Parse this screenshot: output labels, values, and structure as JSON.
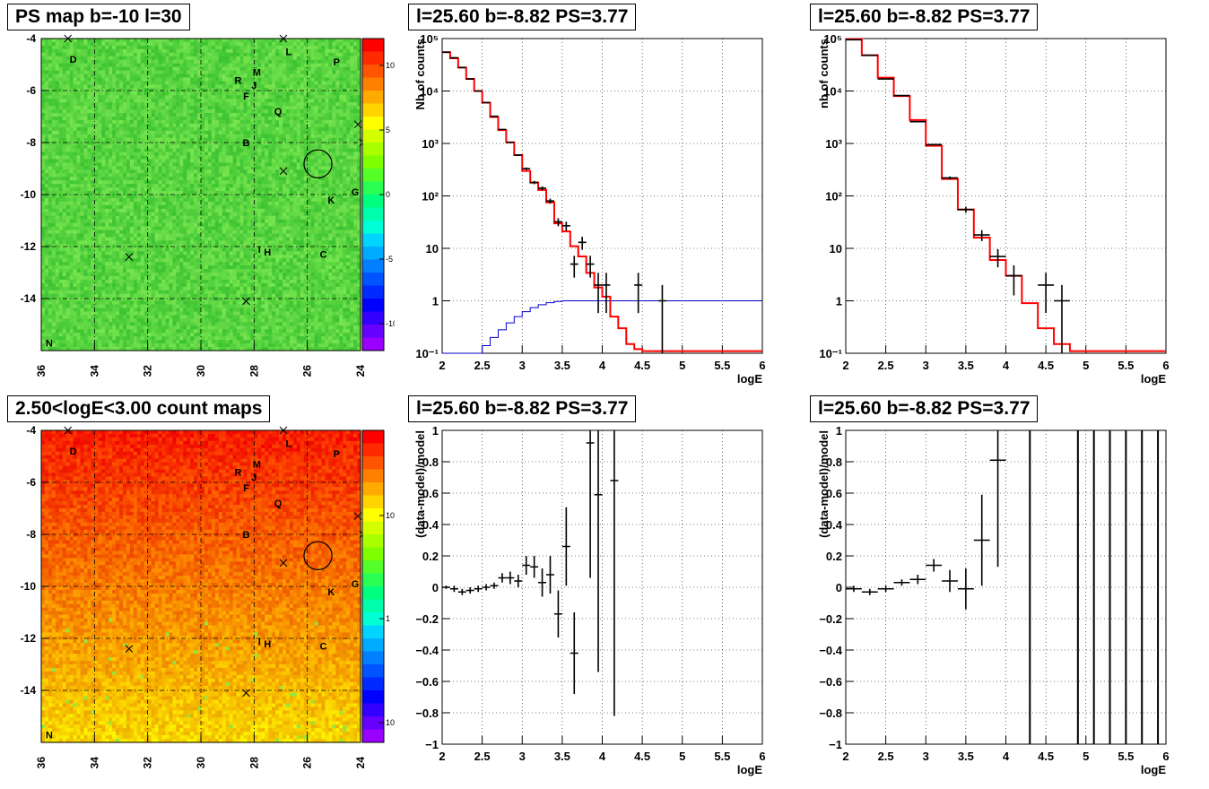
{
  "panels": {
    "map1_title": "PS map b=-10 l=30",
    "map2_title": "2.50<logE<3.00 count maps",
    "spec1_title": "l=25.60 b=-8.82 PS=3.77",
    "spec2_title": "l=25.60 b=-8.82 PS=3.77",
    "res1_title": "l=25.60 b=-8.82 PS=3.77",
    "res2_title": "l=25.60 b=-8.82 PS=3.77"
  },
  "colors": {
    "data": "#000000",
    "model": "#ff0000",
    "efficiency": "#0000cc",
    "grid": "#000000"
  },
  "chart_data": [
    {
      "type": "heatmap",
      "title": "PS map b=-10 l=30",
      "x_ticks": [
        "36",
        "34",
        "32",
        "30",
        "28",
        "26",
        "24"
      ],
      "y_ticks": [
        "-4",
        "-6",
        "-8",
        "-10",
        "-12",
        "-14"
      ],
      "xlim": [
        36,
        24
      ],
      "ylim": [
        -16,
        -4
      ],
      "colorbar_ticks": [
        "10",
        "5",
        "0",
        "-5",
        "-10"
      ],
      "colorbar_range": [
        -12,
        12
      ],
      "sources": [
        {
          "label": "D",
          "l": 34.8,
          "b": -4.8
        },
        {
          "label": "L",
          "l": 26.7,
          "b": -4.5
        },
        {
          "label": "M",
          "l": 27.9,
          "b": -5.3
        },
        {
          "label": "P",
          "l": 24.9,
          "b": -4.9
        },
        {
          "label": "R",
          "l": 28.6,
          "b": -5.6
        },
        {
          "label": "J",
          "l": 28.0,
          "b": -5.8
        },
        {
          "label": "F",
          "l": 28.3,
          "b": -6.2
        },
        {
          "label": "Q",
          "l": 27.1,
          "b": -6.8
        },
        {
          "label": "B",
          "l": 28.3,
          "b": -8.0
        },
        {
          "label": "K",
          "l": 25.1,
          "b": -10.2
        },
        {
          "label": "G",
          "l": 24.2,
          "b": -9.9
        },
        {
          "label": "I",
          "l": 27.8,
          "b": -12.1
        },
        {
          "label": "H",
          "l": 27.5,
          "b": -12.2
        },
        {
          "label": "C",
          "l": 25.4,
          "b": -12.3
        },
        {
          "label": "N",
          "l": 35.7,
          "b": -15.7
        }
      ],
      "markers": [
        {
          "l": 35.0,
          "b": -4.0
        },
        {
          "l": 26.9,
          "b": -4.0
        },
        {
          "l": 24.1,
          "b": -7.3
        },
        {
          "l": 23.9,
          "b": -8.0
        },
        {
          "l": 26.9,
          "b": -9.1
        },
        {
          "l": 32.7,
          "b": -12.4
        },
        {
          "l": 28.3,
          "b": -14.1
        }
      ],
      "circle": {
        "l": 25.6,
        "b": -8.82,
        "r": 0.5
      }
    },
    {
      "type": "heatmap",
      "title": "2.50<logE<3.00 count maps",
      "x_ticks": [
        "36",
        "34",
        "32",
        "30",
        "28",
        "26",
        "24"
      ],
      "y_ticks": [
        "-4",
        "-6",
        "-8",
        "-10",
        "-12",
        "-14"
      ],
      "xlim": [
        36,
        24
      ],
      "ylim": [
        -16,
        -4
      ],
      "colorbar_ticks": [
        "10",
        "1",
        "10⁻¹"
      ],
      "colorbar_scale": "log",
      "sources": [
        {
          "label": "D",
          "l": 34.8,
          "b": -4.8
        },
        {
          "label": "L",
          "l": 26.7,
          "b": -4.5
        },
        {
          "label": "M",
          "l": 27.9,
          "b": -5.3
        },
        {
          "label": "P",
          "l": 24.9,
          "b": -4.9
        },
        {
          "label": "R",
          "l": 28.6,
          "b": -5.6
        },
        {
          "label": "J",
          "l": 28.0,
          "b": -5.8
        },
        {
          "label": "F",
          "l": 28.3,
          "b": -6.2
        },
        {
          "label": "Q",
          "l": 27.1,
          "b": -6.8
        },
        {
          "label": "B",
          "l": 28.3,
          "b": -8.0
        },
        {
          "label": "K",
          "l": 25.1,
          "b": -10.2
        },
        {
          "label": "G",
          "l": 24.2,
          "b": -9.9
        },
        {
          "label": "I",
          "l": 27.8,
          "b": -12.1
        },
        {
          "label": "H",
          "l": 27.5,
          "b": -12.2
        },
        {
          "label": "C",
          "l": 25.4,
          "b": -12.3
        },
        {
          "label": "N",
          "l": 35.7,
          "b": -15.7
        }
      ],
      "markers": [
        {
          "l": 35.0,
          "b": -4.0
        },
        {
          "l": 26.9,
          "b": -4.0
        },
        {
          "l": 24.1,
          "b": -7.3
        },
        {
          "l": 23.9,
          "b": -8.0
        },
        {
          "l": 26.9,
          "b": -9.1
        },
        {
          "l": 32.7,
          "b": -12.4
        },
        {
          "l": 28.3,
          "b": -14.1
        }
      ],
      "circle": {
        "l": 25.6,
        "b": -8.82,
        "r": 0.5
      }
    },
    {
      "type": "line",
      "title": "l=25.60 b=-8.82 PS=3.77",
      "xlabel": "logE",
      "ylabel": "Nb of counts",
      "xlim": [
        2,
        6
      ],
      "ylim": [
        0.1,
        100000
      ],
      "yscale": "log",
      "x_ticks": [
        "2",
        "2.5",
        "3",
        "3.5",
        "4",
        "4.5",
        "5",
        "5.5",
        "6"
      ],
      "y_ticks": [
        "10⁻¹",
        "1",
        "10",
        "10²",
        "10³",
        "10⁴",
        "10⁵"
      ],
      "grid": true,
      "series": [
        {
          "name": "data",
          "x": [
            2.05,
            2.15,
            2.25,
            2.35,
            2.45,
            2.55,
            2.65,
            2.75,
            2.85,
            2.95,
            3.05,
            3.15,
            3.25,
            3.35,
            3.45,
            3.55,
            3.65,
            3.75,
            3.85,
            3.95,
            4.05,
            4.45,
            4.75
          ],
          "y": [
            55000,
            43000,
            28000,
            17000,
            10000,
            6000,
            3300,
            1850,
            1050,
            600,
            330,
            180,
            140,
            80,
            32,
            27,
            5,
            13,
            5,
            2,
            2,
            2,
            1
          ]
        },
        {
          "name": "model",
          "x": [
            2.0,
            2.1,
            2.2,
            2.3,
            2.4,
            2.5,
            2.6,
            2.7,
            2.8,
            2.9,
            3.0,
            3.1,
            3.2,
            3.3,
            3.4,
            3.5,
            3.6,
            3.7,
            3.8,
            3.9,
            4.0,
            4.1,
            4.2,
            4.3,
            4.4,
            4.5,
            4.6
          ],
          "y": [
            55000,
            42000,
            28000,
            17000,
            10000,
            6000,
            3200,
            1800,
            1050,
            600,
            300,
            180,
            130,
            75,
            30,
            21,
            11,
            7,
            3.4,
            1.8,
            1.2,
            0.5,
            0.3,
            0.15,
            0.12,
            0.11,
            0.11
          ]
        },
        {
          "name": "efficiency",
          "x": [
            2.0,
            2.1,
            2.2,
            2.3,
            2.4,
            2.5,
            2.6,
            2.7,
            2.8,
            2.9,
            3.0,
            3.1,
            3.2,
            3.3,
            3.4,
            3.5,
            4.0,
            6.0
          ],
          "y": [
            0.1,
            0.1,
            0.1,
            0.1,
            0.1,
            0.14,
            0.2,
            0.28,
            0.38,
            0.5,
            0.62,
            0.74,
            0.84,
            0.92,
            0.97,
            1.0,
            1.0,
            1.0
          ]
        }
      ]
    },
    {
      "type": "line",
      "title": "l=25.60 b=-8.82 PS=3.77",
      "xlabel": "logE",
      "ylabel": "nb of counts",
      "xlim": [
        2,
        6
      ],
      "ylim": [
        0.1,
        100000
      ],
      "yscale": "log",
      "x_ticks": [
        "2",
        "2.5",
        "3",
        "3.5",
        "4",
        "4.5",
        "5",
        "5.5",
        "6"
      ],
      "y_ticks": [
        "10⁻¹",
        "1",
        "10",
        "10²",
        "10³",
        "10⁴",
        "10⁵"
      ],
      "grid": true,
      "series": [
        {
          "name": "data",
          "x": [
            2.1,
            2.3,
            2.5,
            2.7,
            2.9,
            3.1,
            3.3,
            3.5,
            3.7,
            3.9,
            4.1,
            4.5,
            4.7
          ],
          "y": [
            95000,
            48000,
            17000,
            8200,
            2600,
            950,
            220,
            55,
            18,
            7,
            3,
            2,
            1
          ]
        },
        {
          "name": "model",
          "x": [
            2.0,
            2.2,
            2.4,
            2.6,
            2.8,
            3.0,
            3.2,
            3.4,
            3.6,
            3.8,
            4.0,
            4.2,
            4.4,
            4.6,
            4.8,
            5.0
          ],
          "y": [
            98000,
            48000,
            18000,
            8000,
            2800,
            900,
            210,
            55,
            16,
            6,
            3,
            0.9,
            0.3,
            0.15,
            0.11,
            0.11
          ]
        }
      ]
    },
    {
      "type": "scatter",
      "title": "l=25.60 b=-8.82 PS=3.77",
      "xlabel": "logE",
      "ylabel": "(data-model)/model",
      "xlim": [
        2,
        6
      ],
      "ylim": [
        -1,
        1
      ],
      "x_ticks": [
        "2",
        "2.5",
        "3",
        "3.5",
        "4",
        "4.5",
        "5",
        "5.5",
        "6"
      ],
      "y_ticks": [
        "−1",
        "−0.8",
        "−0.6",
        "−0.4",
        "−0.2",
        "0",
        "0.2",
        "0.4",
        "0.6",
        "0.8",
        "1"
      ],
      "grid": true,
      "series": [
        {
          "name": "residual",
          "x": [
            2.05,
            2.15,
            2.25,
            2.35,
            2.45,
            2.55,
            2.65,
            2.75,
            2.85,
            2.95,
            3.05,
            3.15,
            3.25,
            3.35,
            3.45,
            3.55,
            3.65,
            3.85,
            3.95,
            4.15
          ],
          "y": [
            0.0,
            -0.01,
            -0.03,
            -0.02,
            -0.01,
            0.0,
            0.01,
            0.06,
            0.06,
            0.04,
            0.14,
            0.13,
            0.03,
            0.08,
            -0.17,
            0.26,
            -0.42,
            0.92,
            0.59,
            0.68
          ],
          "err": [
            0.01,
            0.02,
            0.02,
            0.02,
            0.02,
            0.02,
            0.02,
            0.03,
            0.04,
            0.04,
            0.06,
            0.07,
            0.09,
            0.12,
            0.15,
            0.25,
            0.26,
            0.86,
            1.13,
            1.5
          ]
        }
      ]
    },
    {
      "type": "scatter",
      "title": "l=25.60 b=-8.82 PS=3.77",
      "xlabel": "logE",
      "ylabel": "(data-model)/model",
      "xlim": [
        2,
        6
      ],
      "ylim": [
        -1,
        1
      ],
      "x_ticks": [
        "2",
        "2.5",
        "3",
        "3.5",
        "4",
        "4.5",
        "5",
        "5.5",
        "6"
      ],
      "y_ticks": [
        "−1",
        "−0.8",
        "−0.6",
        "−0.4",
        "−0.2",
        "0",
        "0.2",
        "0.4",
        "0.6",
        "0.8",
        "1"
      ],
      "grid": true,
      "series": [
        {
          "name": "residual",
          "x": [
            2.1,
            2.3,
            2.5,
            2.7,
            2.9,
            3.1,
            3.3,
            3.5,
            3.7,
            3.9
          ],
          "y": [
            -0.01,
            -0.03,
            -0.01,
            0.03,
            0.05,
            0.14,
            0.04,
            -0.01,
            0.3,
            0.81
          ],
          "err": [
            0.02,
            0.02,
            0.02,
            0.02,
            0.03,
            0.04,
            0.07,
            0.13,
            0.29,
            0.68
          ]
        }
      ],
      "vertical_lines_at": [
        4.3,
        4.9,
        5.1,
        5.3,
        5.5,
        5.7,
        5.9
      ]
    }
  ]
}
